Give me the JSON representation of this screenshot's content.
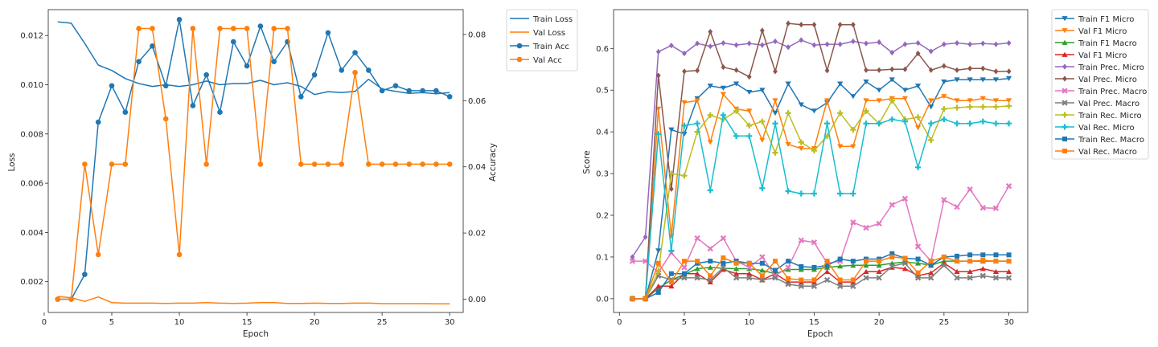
{
  "chart_data": [
    {
      "type": "line",
      "xlabel": "Epoch",
      "ylabel": "Loss",
      "y2label": "Accuracy",
      "x": [
        1,
        2,
        3,
        4,
        5,
        6,
        7,
        8,
        9,
        10,
        11,
        12,
        13,
        14,
        15,
        16,
        17,
        18,
        19,
        20,
        21,
        22,
        23,
        24,
        25,
        26,
        27,
        28,
        29,
        30
      ],
      "xlim": [
        0.3,
        31
      ],
      "xticks": [
        0,
        5,
        10,
        15,
        20,
        25,
        30
      ],
      "ylim": [
        0.00075,
        0.01305
      ],
      "yticks": [
        0.002,
        0.004,
        0.006,
        0.008,
        0.01,
        0.012
      ],
      "ytick_labels": [
        "0.002",
        "0.004",
        "0.006",
        "0.008",
        "0.010",
        "0.012"
      ],
      "y2lim": [
        -0.004,
        0.0875
      ],
      "y2ticks": [
        0.0,
        0.02,
        0.04,
        0.06,
        0.08
      ],
      "y2tick_labels": [
        "0.00",
        "0.02",
        "0.04",
        "0.06",
        "0.08"
      ],
      "legend_position": "outside-right",
      "series": [
        {
          "name": "Train Loss",
          "axis": "left",
          "color": "#1f77b4",
          "marker": "none",
          "values": [
            0.01255,
            0.0125,
            0.01168,
            0.0108,
            0.01058,
            0.01025,
            0.01005,
            0.00993,
            0.01,
            0.00993,
            0.01,
            0.01015,
            0.01,
            0.01005,
            0.01005,
            0.01018,
            0.01,
            0.01008,
            0.00993,
            0.0096,
            0.00972,
            0.00968,
            0.00973,
            0.01022,
            0.00983,
            0.00973,
            0.00965,
            0.00968,
            0.00963,
            0.00968
          ]
        },
        {
          "name": "Val Loss",
          "axis": "left",
          "color": "#ff7f0e",
          "marker": "none",
          "values": [
            0.0014,
            0.00135,
            0.0012,
            0.00138,
            0.00115,
            0.00113,
            0.00113,
            0.00113,
            0.00112,
            0.00113,
            0.00113,
            0.00115,
            0.00113,
            0.00112,
            0.00113,
            0.00115,
            0.00115,
            0.00112,
            0.00112,
            0.00113,
            0.00112,
            0.00112,
            0.00113,
            0.00113,
            0.00111,
            0.00111,
            0.00111,
            0.00111,
            0.0011,
            0.0011
          ]
        },
        {
          "name": "Train Acc",
          "axis": "right",
          "color": "#1f77b4",
          "marker": "circle",
          "values": [
            0.0,
            0.0,
            0.0075,
            0.0535,
            0.0645,
            0.0565,
            0.0718,
            0.0765,
            0.0645,
            0.0845,
            0.0585,
            0.0678,
            0.0565,
            0.0778,
            0.0705,
            0.0825,
            0.0718,
            0.0778,
            0.0612,
            0.0678,
            0.0805,
            0.0692,
            0.0745,
            0.0692,
            0.063,
            0.0645,
            0.063,
            0.063,
            0.063,
            0.0612
          ]
        },
        {
          "name": "Val Acc",
          "axis": "right",
          "color": "#ff7f0e",
          "marker": "circle",
          "values": [
            0.0,
            0.0,
            0.0408,
            0.0135,
            0.0408,
            0.0408,
            0.0818,
            0.0818,
            0.0545,
            0.0135,
            0.0818,
            0.0408,
            0.0818,
            0.0818,
            0.0818,
            0.0408,
            0.0818,
            0.0818,
            0.0408,
            0.0408,
            0.0408,
            0.0408,
            0.0685,
            0.0408,
            0.0408,
            0.0408,
            0.0408,
            0.0408,
            0.0408,
            0.0408
          ]
        }
      ]
    },
    {
      "type": "line",
      "xlabel": "Epoch",
      "ylabel": "Score",
      "x": [
        1,
        2,
        3,
        4,
        5,
        6,
        7,
        8,
        9,
        10,
        11,
        12,
        13,
        14,
        15,
        16,
        17,
        18,
        19,
        20,
        21,
        22,
        23,
        24,
        25,
        26,
        27,
        28,
        29,
        30
      ],
      "xlim": [
        -0.45,
        31.45
      ],
      "xticks": [
        0,
        5,
        10,
        15,
        20,
        25,
        30
      ],
      "ylim": [
        -0.033,
        0.693
      ],
      "yticks": [
        0.0,
        0.1,
        0.2,
        0.3,
        0.4,
        0.5,
        0.6
      ],
      "ytick_labels": [
        "0.0",
        "0.1",
        "0.2",
        "0.3",
        "0.4",
        "0.5",
        "0.6"
      ],
      "legend_position": "outside-right",
      "series": [
        {
          "name": "Train F1 Micro",
          "color": "#1f77b4",
          "marker": "tri_down",
          "values": [
            0.0,
            0.0,
            0.115,
            0.405,
            0.395,
            0.48,
            0.51,
            0.505,
            0.515,
            0.495,
            0.5,
            0.445,
            0.515,
            0.465,
            0.45,
            0.47,
            0.515,
            0.485,
            0.52,
            0.5,
            0.525,
            0.5,
            0.51,
            0.46,
            0.52,
            0.525,
            0.525,
            0.525,
            0.525,
            0.528
          ]
        },
        {
          "name": "Val F1 Micro",
          "color": "#ff7f0e",
          "marker": "tri_down",
          "values": [
            0.0,
            0.0,
            0.455,
            0.15,
            0.47,
            0.475,
            0.375,
            0.49,
            0.455,
            0.45,
            0.38,
            0.475,
            0.37,
            0.36,
            0.36,
            0.475,
            0.365,
            0.365,
            0.475,
            0.475,
            0.48,
            0.48,
            0.41,
            0.475,
            0.485,
            0.475,
            0.475,
            0.48,
            0.475,
            0.475
          ]
        },
        {
          "name": "Train F1 Macro",
          "color": "#2ca02c",
          "marker": "tri_up",
          "values": [
            0.0,
            0.0,
            0.025,
            0.045,
            0.058,
            0.072,
            0.075,
            0.073,
            0.072,
            0.072,
            0.068,
            0.06,
            0.07,
            0.07,
            0.07,
            0.075,
            0.078,
            0.08,
            0.08,
            0.08,
            0.085,
            0.088,
            0.085,
            0.08,
            0.09,
            0.09,
            0.09,
            0.09,
            0.09,
            0.09
          ]
        },
        {
          "name": "Val F1 Micro",
          "color": "#d62728",
          "marker": "tri_up",
          "values": [
            0.0,
            0.0,
            0.03,
            0.03,
            0.06,
            0.06,
            0.04,
            0.07,
            0.06,
            0.06,
            0.045,
            0.06,
            0.04,
            0.04,
            0.04,
            0.065,
            0.04,
            0.04,
            0.065,
            0.065,
            0.075,
            0.072,
            0.055,
            0.062,
            0.085,
            0.065,
            0.065,
            0.072,
            0.065,
            0.065
          ]
        },
        {
          "name": "Train Prec. Micro",
          "color": "#9467bd",
          "marker": "diamond",
          "values": [
            0.1,
            0.148,
            0.592,
            0.607,
            0.588,
            0.612,
            0.605,
            0.613,
            0.608,
            0.612,
            0.608,
            0.617,
            0.603,
            0.62,
            0.608,
            0.61,
            0.61,
            0.617,
            0.612,
            0.615,
            0.59,
            0.61,
            0.613,
            0.593,
            0.61,
            0.613,
            0.61,
            0.612,
            0.61,
            0.613
          ]
        },
        {
          "name": "Val Prec. Micro",
          "color": "#8c564b",
          "marker": "diamond",
          "values": [
            0.0,
            0.0,
            0.535,
            0.263,
            0.545,
            0.547,
            0.64,
            0.555,
            0.548,
            0.532,
            0.643,
            0.545,
            0.66,
            0.657,
            0.657,
            0.547,
            0.657,
            0.657,
            0.548,
            0.548,
            0.55,
            0.55,
            0.588,
            0.548,
            0.558,
            0.548,
            0.552,
            0.552,
            0.545,
            0.545
          ]
        },
        {
          "name": "Train Prec. Macro",
          "color": "#e377c2",
          "marker": "x",
          "values": [
            0.09,
            0.09,
            0.063,
            0.11,
            0.075,
            0.145,
            0.12,
            0.145,
            0.09,
            0.075,
            0.1,
            0.055,
            0.075,
            0.14,
            0.135,
            0.085,
            0.09,
            0.183,
            0.17,
            0.18,
            0.225,
            0.24,
            0.125,
            0.09,
            0.237,
            0.22,
            0.262,
            0.218,
            0.217,
            0.27
          ]
        },
        {
          "name": "Val Prec. Macro",
          "color": "#7f7f7f",
          "marker": "x",
          "values": [
            0.0,
            0.0,
            0.055,
            0.045,
            0.05,
            0.05,
            0.045,
            0.075,
            0.05,
            0.05,
            0.045,
            0.05,
            0.035,
            0.03,
            0.03,
            0.045,
            0.03,
            0.03,
            0.05,
            0.05,
            0.078,
            0.085,
            0.05,
            0.05,
            0.08,
            0.05,
            0.05,
            0.055,
            0.05,
            0.05
          ]
        },
        {
          "name": "Train Rec. Micro",
          "color": "#bcbd22",
          "marker": "plus",
          "values": [
            0.0,
            0.0,
            0.065,
            0.3,
            0.295,
            0.4,
            0.44,
            0.43,
            0.45,
            0.415,
            0.425,
            0.35,
            0.445,
            0.375,
            0.355,
            0.39,
            0.445,
            0.405,
            0.45,
            0.42,
            0.475,
            0.43,
            0.435,
            0.38,
            0.455,
            0.458,
            0.46,
            0.46,
            0.46,
            0.462
          ]
        },
        {
          "name": "Val Rec. Micro",
          "color": "#17becf",
          "marker": "plus",
          "values": [
            0.0,
            0.0,
            0.395,
            0.115,
            0.415,
            0.42,
            0.26,
            0.44,
            0.39,
            0.39,
            0.265,
            0.42,
            0.258,
            0.252,
            0.252,
            0.42,
            0.252,
            0.252,
            0.42,
            0.42,
            0.43,
            0.425,
            0.315,
            0.42,
            0.43,
            0.42,
            0.42,
            0.425,
            0.42,
            0.42
          ]
        },
        {
          "name": "Train Rec. Macro",
          "color": "#1f77b4",
          "marker": "square",
          "values": [
            0.0,
            0.0,
            0.015,
            0.06,
            0.06,
            0.085,
            0.09,
            0.085,
            0.09,
            0.085,
            0.085,
            0.068,
            0.09,
            0.077,
            0.075,
            0.08,
            0.095,
            0.09,
            0.095,
            0.095,
            0.108,
            0.097,
            0.095,
            0.08,
            0.1,
            0.102,
            0.105,
            0.105,
            0.105,
            0.105
          ]
        },
        {
          "name": "Val Rec. Macro",
          "color": "#ff7f0e",
          "marker": "square",
          "values": [
            0.0,
            0.0,
            0.085,
            0.04,
            0.09,
            0.09,
            0.055,
            0.098,
            0.085,
            0.085,
            0.055,
            0.09,
            0.048,
            0.045,
            0.045,
            0.09,
            0.045,
            0.045,
            0.09,
            0.09,
            0.1,
            0.097,
            0.062,
            0.09,
            0.1,
            0.09,
            0.09,
            0.092,
            0.09,
            0.09
          ]
        }
      ]
    }
  ]
}
